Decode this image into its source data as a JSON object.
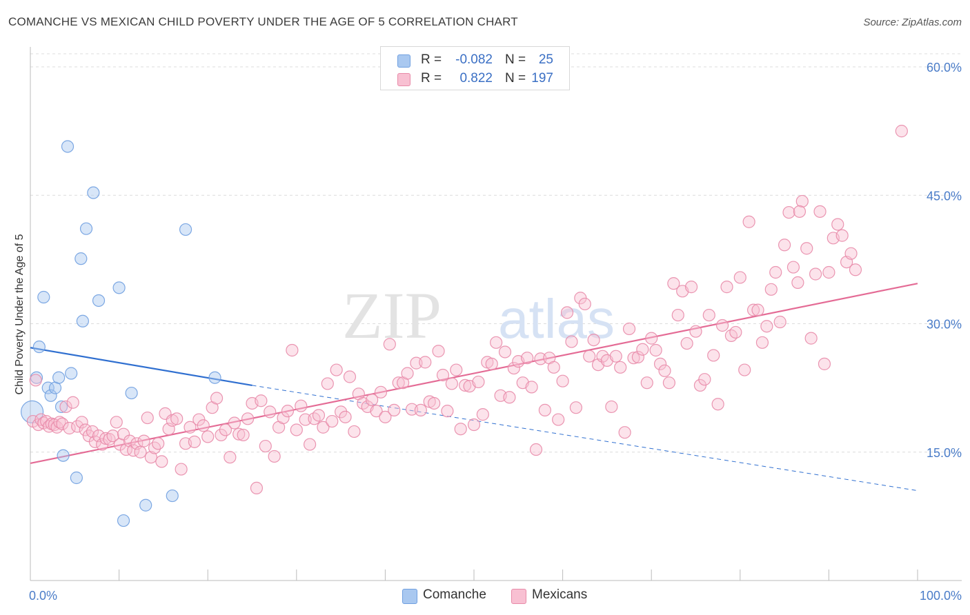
{
  "title": "COMANCHE VS MEXICAN CHILD POVERTY UNDER THE AGE OF 5 CORRELATION CHART",
  "source": "Source: ZipAtlas.com",
  "watermark": {
    "zip": "ZIP",
    "atlas": "atlas"
  },
  "legend": {
    "r_label": "R =",
    "n_label": "N =",
    "rows": [
      {
        "name": "Comanche",
        "r": "-0.082",
        "n": "25",
        "color": "#a9c8f0",
        "border": "#6f9fe0"
      },
      {
        "name": "Mexicans",
        "r": "0.822",
        "n": "197",
        "color": "#f8c0d2",
        "border": "#e88aa8"
      }
    ]
  },
  "chart_data": {
    "type": "scatter",
    "ylabel": "Child Poverty Under the Age of 5",
    "xlabel": "",
    "xlim": [
      0,
      100
    ],
    "ylim": [
      0,
      62
    ],
    "x_ticks": [
      "0.0%",
      "100.0%"
    ],
    "y_ticks": [
      {
        "value": 15,
        "label": "15.0%"
      },
      {
        "value": 30,
        "label": "30.0%"
      },
      {
        "value": 45,
        "label": "45.0%"
      },
      {
        "value": 60,
        "label": "60.0%"
      }
    ],
    "grid": true,
    "series": [
      {
        "name": "Comanche",
        "color": "#6f9fe0",
        "fill": "#a9c8f0",
        "trend": {
          "x": [
            0,
            25
          ],
          "y": [
            27.2,
            22.8
          ],
          "dashed_to": [
            100,
            10.5
          ],
          "color": "#2f6fd0"
        },
        "points": [
          [
            0.2,
            19.7
          ],
          [
            1,
            27.3
          ],
          [
            1.5,
            33.1
          ],
          [
            2,
            22.5
          ],
          [
            2.3,
            21.6
          ],
          [
            2.8,
            22.5
          ],
          [
            3.2,
            23.7
          ],
          [
            3.5,
            20.3
          ],
          [
            3.7,
            14.6
          ],
          [
            4.2,
            50.7
          ],
          [
            4.6,
            24.2
          ],
          [
            5.2,
            12.0
          ],
          [
            5.7,
            37.6
          ],
          [
            5.9,
            30.3
          ],
          [
            6.3,
            41.1
          ],
          [
            7.1,
            45.3
          ],
          [
            7.7,
            32.7
          ],
          [
            10.0,
            34.2
          ],
          [
            10.5,
            7.0
          ],
          [
            11.4,
            21.9
          ],
          [
            13.0,
            8.8
          ],
          [
            16.0,
            9.9
          ],
          [
            17.5,
            41.0
          ],
          [
            20.8,
            23.7
          ],
          [
            0.7,
            23.7
          ]
        ]
      },
      {
        "name": "Mexicans",
        "color": "#e88aa8",
        "fill": "#f8c0d2",
        "trend": {
          "x": [
            0,
            100
          ],
          "y": [
            13.7,
            34.7
          ],
          "color": "#e46b95"
        },
        "points": [
          [
            0.3,
            18.6
          ],
          [
            0.6,
            23.4
          ],
          [
            0.9,
            18.2
          ],
          [
            1.2,
            18.8
          ],
          [
            1.5,
            18.4
          ],
          [
            1.8,
            18.6
          ],
          [
            2.1,
            18.0
          ],
          [
            2.4,
            18.3
          ],
          [
            2.7,
            18.2
          ],
          [
            3.0,
            17.9
          ],
          [
            3.3,
            18.5
          ],
          [
            3.6,
            18.3
          ],
          [
            4.0,
            20.3
          ],
          [
            4.4,
            17.8
          ],
          [
            4.8,
            20.8
          ],
          [
            5.3,
            18.0
          ],
          [
            5.8,
            18.5
          ],
          [
            6.2,
            17.6
          ],
          [
            6.6,
            16.9
          ],
          [
            7.0,
            17.4
          ],
          [
            7.3,
            16.2
          ],
          [
            7.7,
            16.9
          ],
          [
            8.1,
            15.9
          ],
          [
            8.5,
            16.6
          ],
          [
            8.9,
            16.5
          ],
          [
            9.3,
            16.9
          ],
          [
            9.7,
            18.5
          ],
          [
            10.1,
            15.9
          ],
          [
            10.5,
            17.1
          ],
          [
            10.8,
            15.3
          ],
          [
            11.2,
            16.3
          ],
          [
            11.6,
            15.2
          ],
          [
            12.0,
            16.0
          ],
          [
            12.4,
            15.0
          ],
          [
            12.8,
            16.3
          ],
          [
            13.2,
            19.0
          ],
          [
            13.6,
            14.4
          ],
          [
            14.0,
            15.5
          ],
          [
            14.4,
            16.0
          ],
          [
            14.8,
            13.9
          ],
          [
            15.2,
            19.5
          ],
          [
            15.6,
            17.7
          ],
          [
            16.0,
            18.7
          ],
          [
            16.5,
            18.9
          ],
          [
            17.0,
            13.0
          ],
          [
            17.5,
            16.0
          ],
          [
            18.0,
            17.9
          ],
          [
            18.5,
            16.2
          ],
          [
            19.0,
            18.8
          ],
          [
            19.5,
            18.1
          ],
          [
            20.0,
            16.8
          ],
          [
            20.5,
            20.2
          ],
          [
            21.0,
            21.3
          ],
          [
            21.5,
            17.0
          ],
          [
            22.0,
            17.6
          ],
          [
            22.5,
            14.4
          ],
          [
            23.0,
            18.4
          ],
          [
            23.5,
            17.1
          ],
          [
            24.0,
            17.0
          ],
          [
            24.5,
            18.9
          ],
          [
            25.0,
            20.7
          ],
          [
            25.5,
            10.8
          ],
          [
            26.0,
            21.0
          ],
          [
            26.5,
            15.7
          ],
          [
            27.0,
            19.7
          ],
          [
            27.5,
            14.5
          ],
          [
            28.0,
            17.9
          ],
          [
            28.5,
            19.0
          ],
          [
            29.0,
            19.8
          ],
          [
            29.5,
            26.9
          ],
          [
            30.0,
            17.6
          ],
          [
            30.5,
            20.4
          ],
          [
            31.0,
            18.8
          ],
          [
            31.5,
            15.9
          ],
          [
            32.0,
            18.9
          ],
          [
            32.5,
            19.3
          ],
          [
            33.0,
            17.9
          ],
          [
            33.5,
            23.0
          ],
          [
            34.0,
            18.6
          ],
          [
            34.5,
            24.6
          ],
          [
            35.0,
            19.7
          ],
          [
            35.5,
            19.1
          ],
          [
            36.0,
            23.8
          ],
          [
            36.5,
            17.4
          ],
          [
            37.0,
            21.8
          ],
          [
            37.5,
            20.7
          ],
          [
            38.0,
            20.3
          ],
          [
            38.5,
            21.1
          ],
          [
            39.0,
            19.8
          ],
          [
            39.5,
            22.0
          ],
          [
            40.0,
            19.1
          ],
          [
            40.5,
            27.6
          ],
          [
            41.0,
            19.9
          ],
          [
            41.5,
            23.1
          ],
          [
            42.0,
            23.1
          ],
          [
            42.5,
            24.2
          ],
          [
            43.0,
            20.0
          ],
          [
            43.5,
            25.4
          ],
          [
            44.0,
            19.9
          ],
          [
            44.5,
            25.5
          ],
          [
            45.0,
            20.9
          ],
          [
            45.5,
            20.7
          ],
          [
            46.0,
            26.8
          ],
          [
            46.5,
            24.0
          ],
          [
            47.0,
            19.8
          ],
          [
            47.5,
            23.0
          ],
          [
            48.0,
            24.6
          ],
          [
            48.5,
            17.7
          ],
          [
            49.0,
            22.8
          ],
          [
            49.5,
            22.7
          ],
          [
            50.0,
            18.2
          ],
          [
            50.5,
            23.2
          ],
          [
            51.0,
            19.4
          ],
          [
            51.5,
            25.5
          ],
          [
            52.0,
            25.3
          ],
          [
            52.5,
            27.8
          ],
          [
            53.0,
            21.6
          ],
          [
            53.5,
            26.7
          ],
          [
            54.0,
            21.4
          ],
          [
            54.5,
            24.8
          ],
          [
            55.0,
            25.6
          ],
          [
            55.5,
            23.1
          ],
          [
            56.0,
            26.0
          ],
          [
            56.5,
            22.6
          ],
          [
            57.0,
            15.3
          ],
          [
            57.5,
            25.9
          ],
          [
            58.0,
            19.9
          ],
          [
            58.5,
            26.0
          ],
          [
            59.0,
            24.9
          ],
          [
            59.5,
            18.8
          ],
          [
            60.0,
            23.3
          ],
          [
            60.5,
            31.3
          ],
          [
            61.0,
            27.9
          ],
          [
            61.5,
            20.2
          ],
          [
            62.0,
            33.0
          ],
          [
            62.5,
            32.3
          ],
          [
            63.0,
            26.2
          ],
          [
            63.5,
            28.1
          ],
          [
            64.0,
            25.2
          ],
          [
            64.5,
            26.2
          ],
          [
            65.0,
            25.7
          ],
          [
            65.5,
            20.3
          ],
          [
            66.0,
            26.2
          ],
          [
            66.5,
            24.9
          ],
          [
            67.0,
            17.3
          ],
          [
            67.5,
            29.4
          ],
          [
            68.0,
            26.0
          ],
          [
            68.5,
            26.1
          ],
          [
            69.0,
            27.0
          ],
          [
            69.5,
            23.1
          ],
          [
            70.0,
            28.3
          ],
          [
            70.5,
            26.9
          ],
          [
            71.0,
            25.3
          ],
          [
            71.5,
            24.5
          ],
          [
            72.0,
            23.1
          ],
          [
            72.5,
            34.7
          ],
          [
            73.0,
            31.0
          ],
          [
            73.5,
            33.8
          ],
          [
            74.0,
            27.7
          ],
          [
            74.5,
            34.3
          ],
          [
            75.0,
            29.1
          ],
          [
            75.5,
            22.8
          ],
          [
            76.0,
            23.5
          ],
          [
            76.5,
            31.0
          ],
          [
            77.0,
            26.3
          ],
          [
            77.5,
            20.6
          ],
          [
            78.0,
            29.8
          ],
          [
            78.5,
            34.3
          ],
          [
            79.0,
            28.6
          ],
          [
            79.5,
            29.0
          ],
          [
            80.0,
            35.4
          ],
          [
            80.5,
            24.6
          ],
          [
            81.0,
            41.9
          ],
          [
            81.5,
            31.6
          ],
          [
            82.0,
            31.6
          ],
          [
            82.5,
            27.8
          ],
          [
            83.0,
            29.7
          ],
          [
            83.5,
            34.0
          ],
          [
            84.0,
            36.0
          ],
          [
            84.5,
            30.2
          ],
          [
            85.0,
            39.2
          ],
          [
            85.5,
            43.0
          ],
          [
            86.0,
            36.6
          ],
          [
            86.5,
            34.8
          ],
          [
            87.0,
            44.3
          ],
          [
            87.5,
            38.8
          ],
          [
            88.0,
            28.3
          ],
          [
            88.5,
            35.8
          ],
          [
            89.0,
            43.1
          ],
          [
            89.5,
            25.3
          ],
          [
            90.0,
            36.0
          ],
          [
            90.5,
            40.0
          ],
          [
            91.0,
            41.6
          ],
          [
            91.5,
            40.3
          ],
          [
            92.0,
            37.2
          ],
          [
            92.5,
            38.2
          ],
          [
            93.0,
            36.3
          ],
          [
            98.2,
            52.5
          ],
          [
            86.7,
            43.1
          ]
        ]
      }
    ]
  },
  "bottom_legend": [
    {
      "name": "Comanche"
    },
    {
      "name": "Mexicans"
    }
  ]
}
